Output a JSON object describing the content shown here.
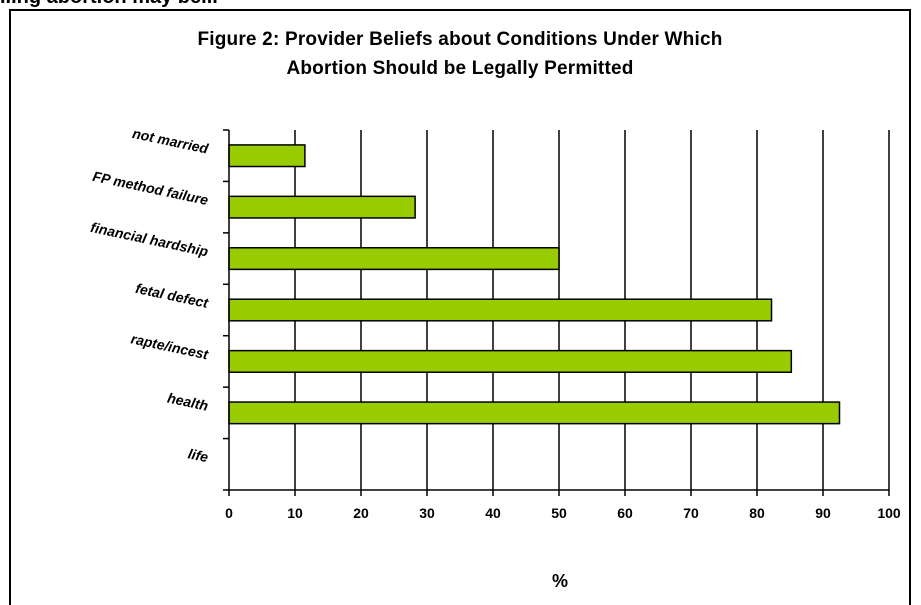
{
  "figure": {
    "top_fragment": "...ng abortion may be...",
    "title_line1": "Figure 2: Provider Beliefs about Conditions Under Which",
    "title_line2": "Abortion Should be Legally Permitted"
  },
  "chart_data": {
    "type": "bar",
    "orientation": "horizontal",
    "title": "Figure 2: Provider Beliefs about Conditions Under Which Abortion Should be Legally Permitted",
    "categories": [
      "not married",
      "FP method failure",
      "financial hardship",
      "fetal defect",
      "rapte/incest",
      "health",
      "life"
    ],
    "values": [
      11.5,
      28.2,
      50,
      82.2,
      85.2,
      92.5,
      0
    ],
    "xlabel": "%",
    "ylabel": "",
    "xlim": [
      0,
      100
    ],
    "xticks": [
      "0",
      "10",
      "20",
      "30",
      "40",
      "50",
      "60",
      "70",
      "80",
      "90",
      "100"
    ],
    "grid": "vertical",
    "bar_color": "#99cc00"
  }
}
